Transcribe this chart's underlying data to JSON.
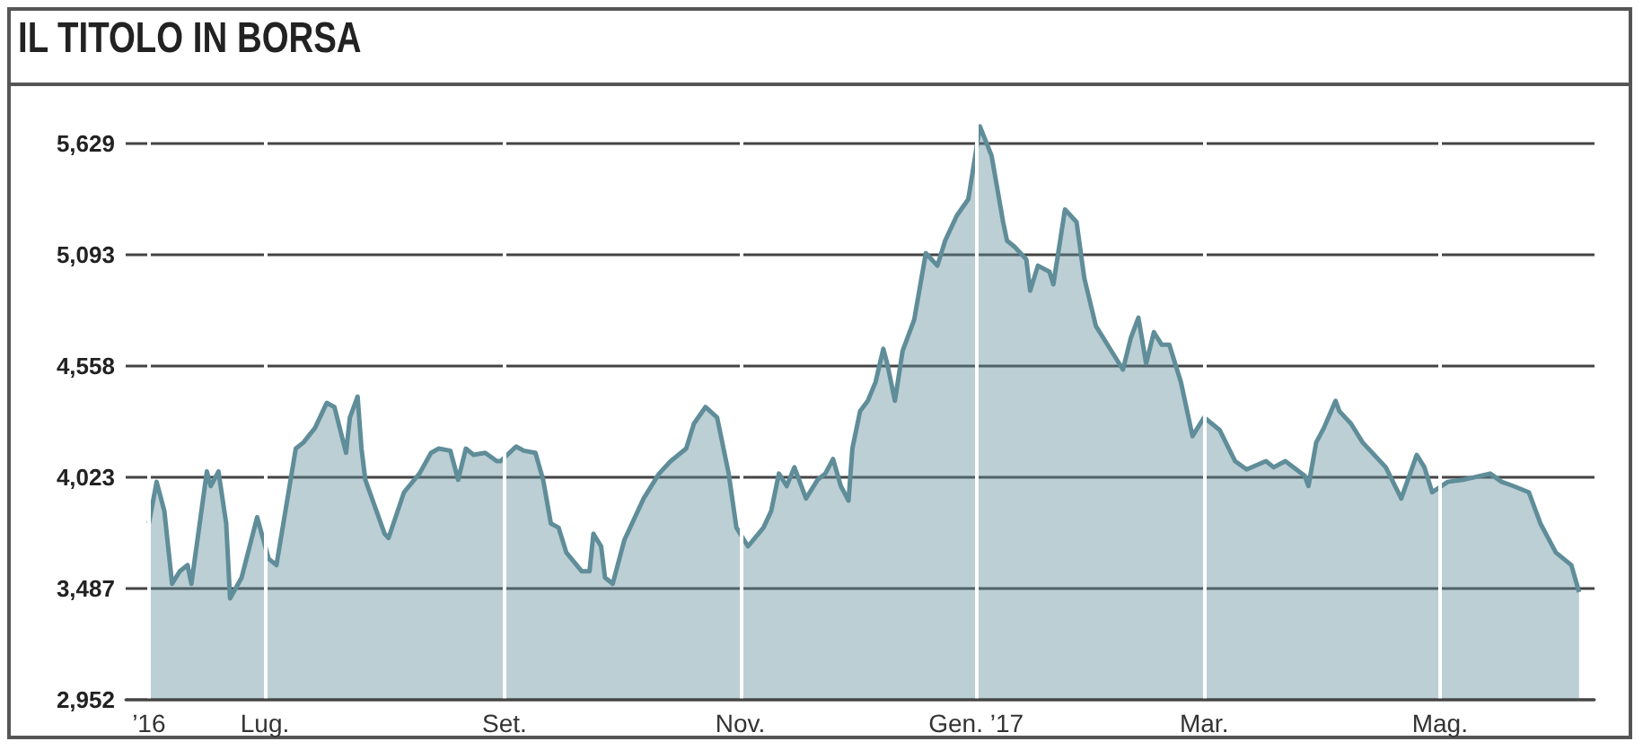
{
  "chart_data": {
    "type": "area",
    "title": "IL TITOLO IN BORSA",
    "x": [
      "2016-06-01",
      "2016-06-03",
      "2016-06-05",
      "2016-06-07",
      "2016-06-09",
      "2016-06-11",
      "2016-06-12",
      "2016-06-16",
      "2016-06-17",
      "2016-06-19",
      "2016-06-21",
      "2016-06-22",
      "2016-06-25",
      "2016-06-29",
      "2016-07-02",
      "2016-07-04",
      "2016-07-09",
      "2016-07-11",
      "2016-07-14",
      "2016-07-17",
      "2016-07-19",
      "2016-07-22",
      "2016-07-23",
      "2016-07-25",
      "2016-07-26",
      "2016-07-27",
      "2016-08-01",
      "2016-08-02",
      "2016-08-06",
      "2016-08-10",
      "2016-08-13",
      "2016-08-15",
      "2016-08-18",
      "2016-08-20",
      "2016-08-22",
      "2016-08-24",
      "2016-08-27",
      "2016-08-30",
      "2016-08-31",
      "2016-09-04",
      "2016-09-06",
      "2016-09-09",
      "2016-09-11",
      "2016-09-13",
      "2016-09-15",
      "2016-09-17",
      "2016-09-21",
      "2016-09-23",
      "2016-09-24",
      "2016-09-26",
      "2016-09-27",
      "2016-09-29",
      "2016-10-02",
      "2016-10-07",
      "2016-10-11",
      "2016-10-14",
      "2016-10-18",
      "2016-10-20",
      "2016-10-23",
      "2016-10-26",
      "2016-10-29",
      "2016-10-31",
      "2016-11-03",
      "2016-11-07",
      "2016-11-09",
      "2016-11-11",
      "2016-11-13",
      "2016-11-15",
      "2016-11-18",
      "2016-11-21",
      "2016-11-23",
      "2016-11-25",
      "2016-11-27",
      "2016-11-29",
      "2016-11-30",
      "2016-12-02",
      "2016-12-04",
      "2016-12-06",
      "2016-12-08",
      "2016-12-09",
      "2016-12-11",
      "2016-12-13",
      "2016-12-16",
      "2016-12-19",
      "2016-12-22",
      "2016-12-24",
      "2016-12-27",
      "2016-12-30",
      "2017-01-02",
      "2017-01-05",
      "2017-01-08",
      "2017-01-09",
      "2017-01-11",
      "2017-01-14",
      "2017-01-15",
      "2017-01-17",
      "2017-01-20",
      "2017-01-21",
      "2017-01-24",
      "2017-01-27",
      "2017-01-29",
      "2017-02-01",
      "2017-02-03",
      "2017-02-08",
      "2017-02-10",
      "2017-02-12",
      "2017-02-14",
      "2017-02-16",
      "2017-02-18",
      "2017-02-20",
      "2017-02-23",
      "2017-02-26",
      "2017-03-01",
      "2017-03-05",
      "2017-03-09",
      "2017-03-12",
      "2017-03-17",
      "2017-03-19",
      "2017-03-22",
      "2017-03-27",
      "2017-03-28",
      "2017-03-30",
      "2017-04-01",
      "2017-04-04",
      "2017-04-05",
      "2017-04-08",
      "2017-04-11",
      "2017-04-17",
      "2017-04-21",
      "2017-04-25",
      "2017-04-27",
      "2017-04-29",
      "2017-05-03",
      "2017-05-07",
      "2017-05-14",
      "2017-05-17",
      "2017-05-20",
      "2017-05-24",
      "2017-05-27",
      "2017-05-31",
      "2017-06-04",
      "2017-06-06"
    ],
    "series": [
      {
        "color": "#5f8d99",
        "values": [
          3800,
          4000,
          3860,
          3510,
          3570,
          3600,
          3510,
          4050,
          3980,
          4050,
          3800,
          3440,
          3540,
          3830,
          3630,
          3600,
          4160,
          4190,
          4260,
          4380,
          4360,
          4140,
          4310,
          4410,
          4160,
          4010,
          3750,
          3730,
          3950,
          4040,
          4140,
          4160,
          4150,
          4010,
          4160,
          4130,
          4140,
          4100,
          4100,
          4170,
          4150,
          4140,
          4010,
          3800,
          3780,
          3660,
          3570,
          3570,
          3750,
          3690,
          3540,
          3510,
          3720,
          3920,
          4040,
          4100,
          4160,
          4280,
          4360,
          4310,
          4040,
          3780,
          3690,
          3780,
          3860,
          4040,
          3980,
          4070,
          3920,
          4010,
          4040,
          4110,
          3980,
          3910,
          4160,
          4340,
          4390,
          4480,
          4640,
          4570,
          4390,
          4630,
          4780,
          5100,
          5040,
          5160,
          5280,
          5360,
          5710,
          5570,
          5250,
          5160,
          5130,
          5070,
          4920,
          5040,
          5010,
          4950,
          5310,
          5250,
          4980,
          4750,
          4690,
          4540,
          4690,
          4790,
          4570,
          4720,
          4660,
          4660,
          4480,
          4220,
          4310,
          4250,
          4100,
          4060,
          4100,
          4070,
          4100,
          4030,
          3980,
          4190,
          4260,
          4390,
          4340,
          4280,
          4190,
          4070,
          3920,
          4130,
          4070,
          3950,
          4000,
          4010,
          4040,
          4000,
          3980,
          3950,
          3800,
          3660,
          3600,
          3470
        ]
      }
    ],
    "xlim": [
      "2016-05-26",
      "2017-06-10"
    ],
    "xticks": [
      {
        "value": "2016-06-01",
        "label": "’16"
      },
      {
        "value": "2016-07-01",
        "label": "Lug."
      },
      {
        "value": "2016-09-01",
        "label": "Set."
      },
      {
        "value": "2016-11-01",
        "label": "Nov."
      },
      {
        "value": "2017-01-01",
        "label": "Gen. ’17"
      },
      {
        "value": "2017-03-01",
        "label": "Mar."
      },
      {
        "value": "2017-05-01",
        "label": "Mag."
      }
    ],
    "ylim": [
      2952,
      5800
    ],
    "yticks": [
      {
        "value": 2952,
        "label": "2,952"
      },
      {
        "value": 3487,
        "label": "3,487"
      },
      {
        "value": 4023,
        "label": "4,023"
      },
      {
        "value": 4558,
        "label": "4,558"
      },
      {
        "value": 5093,
        "label": "5,093"
      },
      {
        "value": 5629,
        "label": "5,629"
      }
    ],
    "grid": true
  }
}
